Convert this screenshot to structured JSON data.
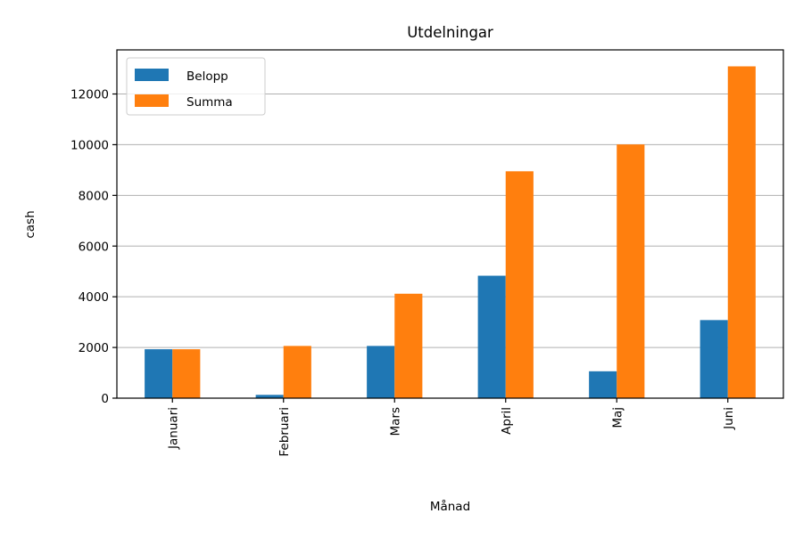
{
  "chart_data": {
    "type": "bar",
    "title": "Utdelningar",
    "xlabel": "Månad",
    "ylabel": "cash",
    "categories": [
      "Januari",
      "Februari",
      "Mars",
      "April",
      "Maj",
      "Juni"
    ],
    "series": [
      {
        "name": "Belopp",
        "color": "#1f77b4",
        "values": [
          1930,
          130,
          2060,
          4830,
          1060,
          3080
        ]
      },
      {
        "name": "Summa",
        "color": "#ff7f0e",
        "values": [
          1930,
          2060,
          4120,
          8950,
          10010,
          13090
        ]
      }
    ],
    "ylim": [
      0,
      13740
    ],
    "yticks": [
      0,
      2000,
      4000,
      6000,
      8000,
      10000,
      12000
    ],
    "grid": "y",
    "legend_position": "top-left"
  }
}
